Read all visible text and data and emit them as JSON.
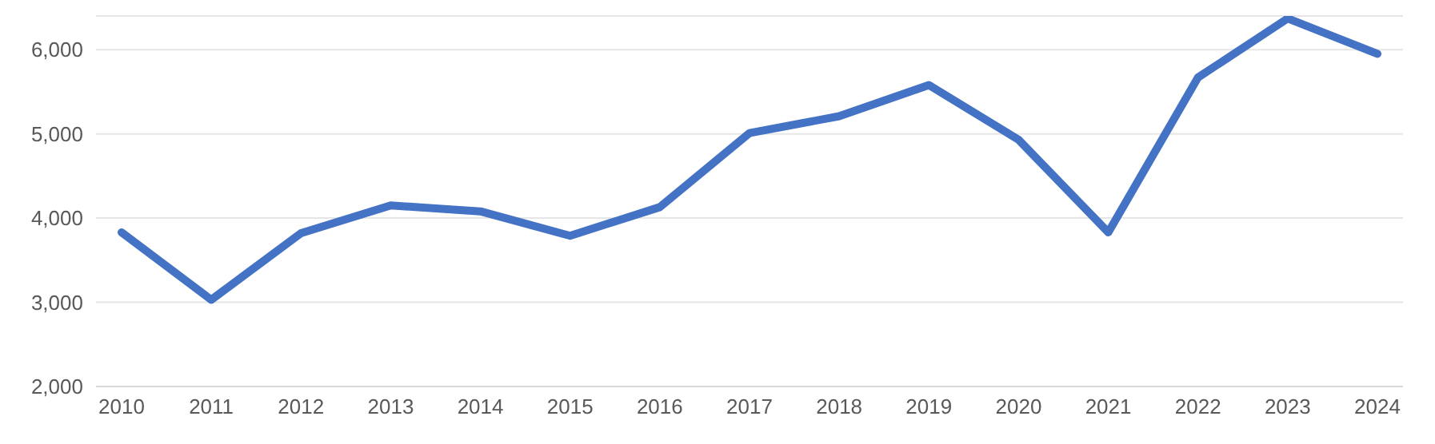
{
  "chart_data": {
    "type": "line",
    "categories": [
      "2010",
      "2011",
      "2012",
      "2013",
      "2014",
      "2015",
      "2016",
      "2017",
      "2018",
      "2019",
      "2020",
      "2021",
      "2022",
      "2023",
      "2024"
    ],
    "series": [
      {
        "color": "#4472c4",
        "values": [
          3830,
          3030,
          3820,
          4150,
          4080,
          3790,
          4130,
          5010,
          5210,
          5580,
          4930,
          3830,
          5670,
          6370,
          5950
        ]
      }
    ],
    "ylim": [
      2000,
      6400
    ],
    "yticks": [
      {
        "value": 2000,
        "label": "2,000"
      },
      {
        "value": 3000,
        "label": "3,000"
      },
      {
        "value": 4000,
        "label": "4,000"
      },
      {
        "value": 5000,
        "label": "5,000"
      },
      {
        "value": 6000,
        "label": "6,000"
      }
    ],
    "grid": "y",
    "marker": "none",
    "line_style": "solid"
  }
}
